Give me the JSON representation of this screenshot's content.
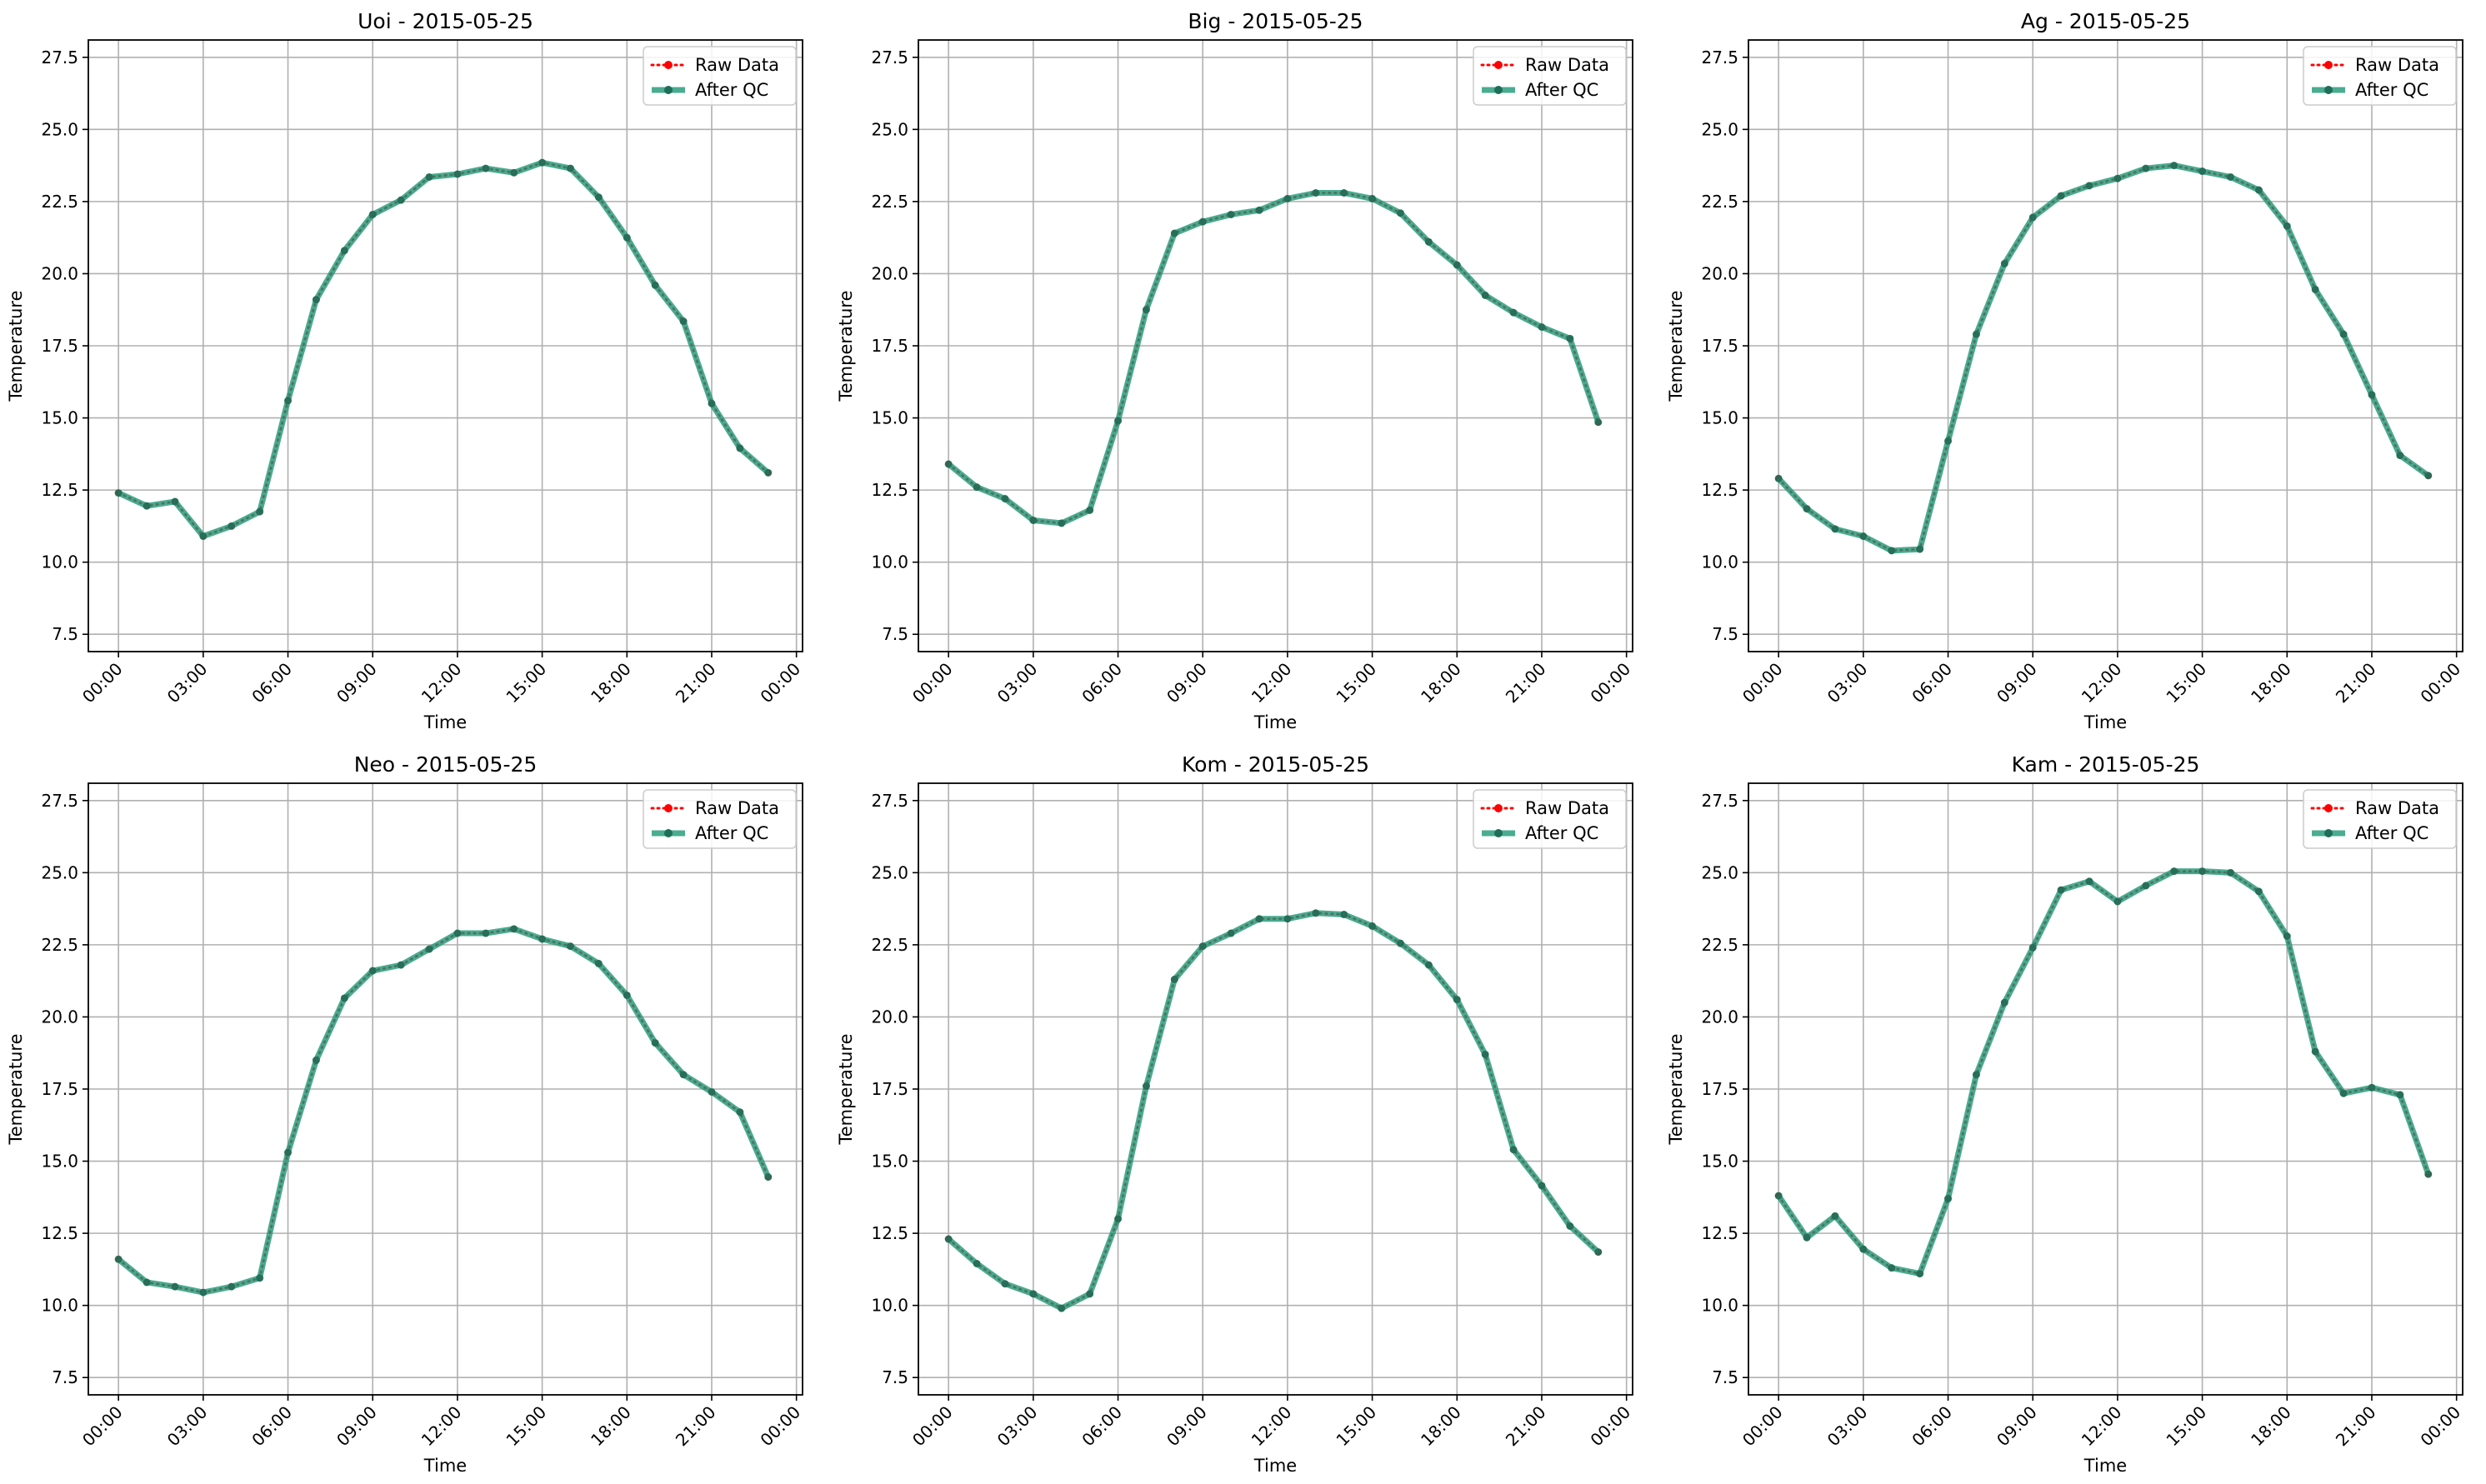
{
  "figure": {
    "background": "#ffffff",
    "grid_color": "#b0b0b0",
    "raw_color": "#ff0000",
    "qc_color": "#2a9d7c"
  },
  "legend": {
    "raw_label": "Raw Data",
    "qc_label": "After QC",
    "placement": "upper-right"
  },
  "chart_data": [
    {
      "type": "line",
      "title": "Uoi - 2015-05-25",
      "xlabel": "Time",
      "ylabel": "Temperature",
      "xlim": [
        "2015-05-24 22:56",
        "2015-05-26 00:13"
      ],
      "ylim": [
        6.9,
        28.1
      ],
      "yticks": [
        7.5,
        10.0,
        12.5,
        15.0,
        17.5,
        20.0,
        22.5,
        25.0,
        27.5
      ],
      "xticks": [
        "00:00",
        "03:00",
        "06:00",
        "09:00",
        "12:00",
        "15:00",
        "18:00",
        "21:00",
        "00:00"
      ],
      "grid": true,
      "legend": "top-right",
      "x": [
        "00:00",
        "01:00",
        "02:00",
        "03:00",
        "04:00",
        "05:00",
        "06:00",
        "07:00",
        "08:00",
        "09:00",
        "10:00",
        "11:00",
        "12:00",
        "13:00",
        "14:00",
        "15:00",
        "16:00",
        "17:00",
        "18:00",
        "19:00",
        "20:00",
        "21:00",
        "22:00",
        "23:00"
      ],
      "series": [
        {
          "name": "Raw Data",
          "values": [
            12.4,
            11.95,
            12.1,
            10.9,
            11.25,
            11.75,
            15.6,
            19.1,
            20.8,
            22.05,
            22.55,
            23.35,
            23.45,
            23.65,
            23.5,
            23.85,
            23.65,
            22.65,
            21.25,
            19.6,
            18.35,
            15.5,
            13.95,
            13.1
          ]
        },
        {
          "name": "After QC",
          "values": [
            12.4,
            11.95,
            12.1,
            10.9,
            11.25,
            11.75,
            15.6,
            19.1,
            20.8,
            22.05,
            22.55,
            23.35,
            23.45,
            23.65,
            23.5,
            23.85,
            23.65,
            22.65,
            21.25,
            19.6,
            18.35,
            15.5,
            13.95,
            13.1
          ]
        }
      ]
    },
    {
      "type": "line",
      "title": "Big - 2015-05-25",
      "xlabel": "Time",
      "ylabel": "Temperature",
      "xlim": [
        "2015-05-24 22:56",
        "2015-05-26 00:13"
      ],
      "ylim": [
        6.9,
        28.1
      ],
      "yticks": [
        7.5,
        10.0,
        12.5,
        15.0,
        17.5,
        20.0,
        22.5,
        25.0,
        27.5
      ],
      "xticks": [
        "00:00",
        "03:00",
        "06:00",
        "09:00",
        "12:00",
        "15:00",
        "18:00",
        "21:00",
        "00:00"
      ],
      "grid": true,
      "legend": "top-right",
      "x": [
        "00:00",
        "01:00",
        "02:00",
        "03:00",
        "04:00",
        "05:00",
        "06:00",
        "07:00",
        "08:00",
        "09:00",
        "10:00",
        "11:00",
        "12:00",
        "13:00",
        "14:00",
        "15:00",
        "16:00",
        "17:00",
        "18:00",
        "19:00",
        "20:00",
        "21:00",
        "22:00",
        "23:00"
      ],
      "series": [
        {
          "name": "Raw Data",
          "values": [
            13.4,
            12.6,
            12.2,
            11.45,
            11.35,
            11.8,
            14.9,
            18.75,
            21.4,
            21.8,
            22.05,
            22.2,
            22.6,
            22.8,
            22.8,
            22.6,
            22.1,
            21.1,
            20.3,
            19.25,
            18.65,
            18.15,
            17.75,
            14.85
          ]
        },
        {
          "name": "After QC",
          "values": [
            13.4,
            12.6,
            12.2,
            11.45,
            11.35,
            11.8,
            14.9,
            18.75,
            21.4,
            21.8,
            22.05,
            22.2,
            22.6,
            22.8,
            22.8,
            22.6,
            22.1,
            21.1,
            20.3,
            19.25,
            18.65,
            18.15,
            17.75,
            14.85
          ]
        }
      ]
    },
    {
      "type": "line",
      "title": "Ag - 2015-05-25",
      "xlabel": "Time",
      "ylabel": "Temperature",
      "xlim": [
        "2015-05-24 22:56",
        "2015-05-26 00:13"
      ],
      "ylim": [
        6.9,
        28.1
      ],
      "yticks": [
        7.5,
        10.0,
        12.5,
        15.0,
        17.5,
        20.0,
        22.5,
        25.0,
        27.5
      ],
      "xticks": [
        "00:00",
        "03:00",
        "06:00",
        "09:00",
        "12:00",
        "15:00",
        "18:00",
        "21:00",
        "00:00"
      ],
      "grid": true,
      "legend": "top-right",
      "x": [
        "00:00",
        "01:00",
        "02:00",
        "03:00",
        "04:00",
        "05:00",
        "06:00",
        "07:00",
        "08:00",
        "09:00",
        "10:00",
        "11:00",
        "12:00",
        "13:00",
        "14:00",
        "15:00",
        "16:00",
        "17:00",
        "18:00",
        "19:00",
        "20:00",
        "21:00",
        "22:00",
        "23:00"
      ],
      "series": [
        {
          "name": "Raw Data",
          "values": [
            12.9,
            11.85,
            11.15,
            10.9,
            10.4,
            10.45,
            14.2,
            17.9,
            20.35,
            21.95,
            22.7,
            23.05,
            23.3,
            23.65,
            23.75,
            23.55,
            23.35,
            22.9,
            21.65,
            19.45,
            17.9,
            15.8,
            13.7,
            13.0
          ]
        },
        {
          "name": "After QC",
          "values": [
            12.9,
            11.85,
            11.15,
            10.9,
            10.4,
            10.45,
            14.2,
            17.9,
            20.35,
            21.95,
            22.7,
            23.05,
            23.3,
            23.65,
            23.75,
            23.55,
            23.35,
            22.9,
            21.65,
            19.45,
            17.9,
            15.8,
            13.7,
            13.0
          ]
        }
      ]
    },
    {
      "type": "line",
      "title": "Neo - 2015-05-25",
      "xlabel": "Time",
      "ylabel": "Temperature",
      "xlim": [
        "2015-05-24 22:56",
        "2015-05-26 00:13"
      ],
      "ylim": [
        6.9,
        28.1
      ],
      "yticks": [
        7.5,
        10.0,
        12.5,
        15.0,
        17.5,
        20.0,
        22.5,
        25.0,
        27.5
      ],
      "xticks": [
        "00:00",
        "03:00",
        "06:00",
        "09:00",
        "12:00",
        "15:00",
        "18:00",
        "21:00",
        "00:00"
      ],
      "grid": true,
      "legend": "top-right",
      "x": [
        "00:00",
        "01:00",
        "02:00",
        "03:00",
        "04:00",
        "05:00",
        "06:00",
        "07:00",
        "08:00",
        "09:00",
        "10:00",
        "11:00",
        "12:00",
        "13:00",
        "14:00",
        "15:00",
        "16:00",
        "17:00",
        "18:00",
        "19:00",
        "20:00",
        "21:00",
        "22:00",
        "23:00"
      ],
      "series": [
        {
          "name": "Raw Data",
          "values": [
            11.6,
            10.8,
            10.65,
            10.45,
            10.65,
            10.95,
            15.3,
            18.5,
            20.65,
            21.6,
            21.8,
            22.35,
            22.9,
            22.9,
            23.05,
            22.7,
            22.45,
            21.85,
            20.75,
            19.1,
            18.0,
            17.4,
            16.7,
            14.45
          ]
        },
        {
          "name": "After QC",
          "values": [
            11.6,
            10.8,
            10.65,
            10.45,
            10.65,
            10.95,
            15.3,
            18.5,
            20.65,
            21.6,
            21.8,
            22.35,
            22.9,
            22.9,
            23.05,
            22.7,
            22.45,
            21.85,
            20.75,
            19.1,
            18.0,
            17.4,
            16.7,
            14.45
          ]
        }
      ]
    },
    {
      "type": "line",
      "title": "Kom - 2015-05-25",
      "xlabel": "Time",
      "ylabel": "Temperature",
      "xlim": [
        "2015-05-24 22:56",
        "2015-05-26 00:13"
      ],
      "ylim": [
        6.9,
        28.1
      ],
      "yticks": [
        7.5,
        10.0,
        12.5,
        15.0,
        17.5,
        20.0,
        22.5,
        25.0,
        27.5
      ],
      "xticks": [
        "00:00",
        "03:00",
        "06:00",
        "09:00",
        "12:00",
        "15:00",
        "18:00",
        "21:00",
        "00:00"
      ],
      "grid": true,
      "legend": "top-right",
      "x": [
        "00:00",
        "01:00",
        "02:00",
        "03:00",
        "04:00",
        "05:00",
        "06:00",
        "07:00",
        "08:00",
        "09:00",
        "10:00",
        "11:00",
        "12:00",
        "13:00",
        "14:00",
        "15:00",
        "16:00",
        "17:00",
        "18:00",
        "19:00",
        "20:00",
        "21:00",
        "22:00",
        "23:00"
      ],
      "series": [
        {
          "name": "Raw Data",
          "values": [
            12.3,
            11.45,
            10.75,
            10.4,
            9.9,
            10.4,
            13.0,
            17.6,
            21.3,
            22.45,
            22.9,
            23.4,
            23.4,
            23.6,
            23.55,
            23.15,
            22.55,
            21.8,
            20.6,
            18.7,
            15.4,
            14.15,
            12.75,
            11.85
          ]
        },
        {
          "name": "After QC",
          "values": [
            12.3,
            11.45,
            10.75,
            10.4,
            9.9,
            10.4,
            13.0,
            17.6,
            21.3,
            22.45,
            22.9,
            23.4,
            23.4,
            23.6,
            23.55,
            23.15,
            22.55,
            21.8,
            20.6,
            18.7,
            15.4,
            14.15,
            12.75,
            11.85
          ]
        }
      ]
    },
    {
      "type": "line",
      "title": "Kam - 2015-05-25",
      "xlabel": "Time",
      "ylabel": "Temperature",
      "xlim": [
        "2015-05-24 22:56",
        "2015-05-26 00:13"
      ],
      "ylim": [
        6.9,
        28.1
      ],
      "yticks": [
        7.5,
        10.0,
        12.5,
        15.0,
        17.5,
        20.0,
        22.5,
        25.0,
        27.5
      ],
      "xticks": [
        "00:00",
        "03:00",
        "06:00",
        "09:00",
        "12:00",
        "15:00",
        "18:00",
        "21:00",
        "00:00"
      ],
      "grid": true,
      "legend": "top-right",
      "x": [
        "00:00",
        "01:00",
        "02:00",
        "03:00",
        "04:00",
        "05:00",
        "06:00",
        "07:00",
        "08:00",
        "09:00",
        "10:00",
        "11:00",
        "12:00",
        "13:00",
        "14:00",
        "15:00",
        "16:00",
        "17:00",
        "18:00",
        "19:00",
        "20:00",
        "21:00",
        "22:00",
        "23:00"
      ],
      "series": [
        {
          "name": "Raw Data",
          "values": [
            13.8,
            12.35,
            13.1,
            11.95,
            11.3,
            11.1,
            13.7,
            18.0,
            20.5,
            22.4,
            24.4,
            24.7,
            24.0,
            24.55,
            25.05,
            25.05,
            25.0,
            24.35,
            22.8,
            18.8,
            17.35,
            17.55,
            17.3,
            14.55
          ]
        },
        {
          "name": "After QC",
          "values": [
            13.8,
            12.35,
            13.1,
            11.95,
            11.3,
            11.1,
            13.7,
            18.0,
            20.5,
            22.4,
            24.4,
            24.7,
            24.0,
            24.55,
            25.05,
            25.05,
            25.0,
            24.35,
            22.8,
            18.8,
            17.35,
            17.55,
            17.3,
            14.55
          ]
        }
      ]
    }
  ]
}
